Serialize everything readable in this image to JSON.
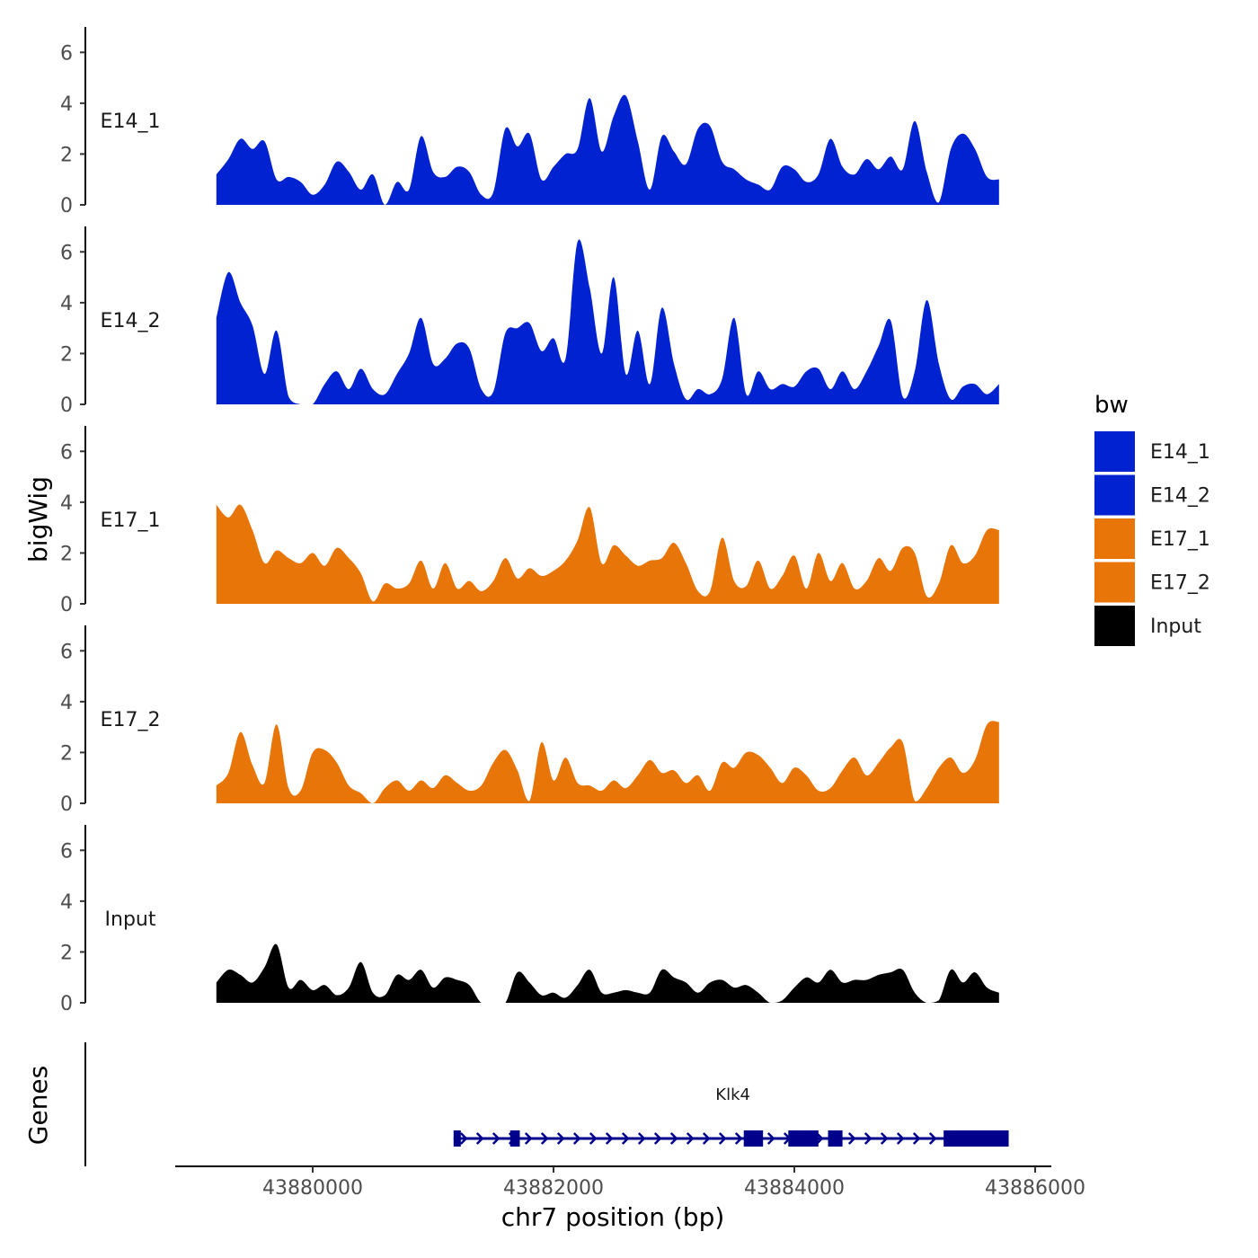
{
  "chart_data": {
    "type": "area",
    "title": "",
    "xlabel": "chr7 position (bp)",
    "ylabel": "bigWig",
    "gene_panel_label": "Genes",
    "x_range": [
      43879000,
      43886200
    ],
    "x_ticks": [
      43880000,
      43882000,
      43884000,
      43886000
    ],
    "x_tick_labels": [
      "43880000",
      "43882000",
      "43884000",
      "43886000"
    ],
    "y_range": [
      0,
      7
    ],
    "y_ticks": [
      0,
      2,
      4,
      6
    ],
    "y_tick_labels": [
      "0",
      "2",
      "4",
      "6"
    ],
    "legend": {
      "title": "bw",
      "position": "right",
      "entries": [
        {
          "label": "E14_1",
          "color": "#0022D1"
        },
        {
          "label": "E14_2",
          "color": "#0022D1"
        },
        {
          "label": "E17_1",
          "color": "#E87507"
        },
        {
          "label": "E17_2",
          "color": "#E87507"
        },
        {
          "label": "Input",
          "color": "#000000"
        }
      ]
    },
    "series": [
      {
        "name": "E14_1",
        "color": "#0022D1",
        "x": [
          43879200,
          43879300,
          43879400,
          43879500,
          43879600,
          43879700,
          43879800,
          43879900,
          43880000,
          43880100,
          43880200,
          43880300,
          43880400,
          43880500,
          43880600,
          43880700,
          43880800,
          43880900,
          43881000,
          43881100,
          43881200,
          43881300,
          43881400,
          43881500,
          43881600,
          43881700,
          43881800,
          43881900,
          43882000,
          43882100,
          43882200,
          43882300,
          43882400,
          43882500,
          43882600,
          43882700,
          43882800,
          43882900,
          43883000,
          43883100,
          43883200,
          43883300,
          43883400,
          43883500,
          43883600,
          43883700,
          43883800,
          43883900,
          43884000,
          43884100,
          43884200,
          43884300,
          43884400,
          43884500,
          43884600,
          43884700,
          43884800,
          43884900,
          43885000,
          43885100,
          43885200,
          43885300,
          43885400,
          43885500,
          43885600,
          43885700
        ],
        "values": [
          1.2,
          1.8,
          2.6,
          2.2,
          2.5,
          1.0,
          1.1,
          0.9,
          0.4,
          0.8,
          1.7,
          1.3,
          0.6,
          1.2,
          0.0,
          0.9,
          0.6,
          2.7,
          1.3,
          1.1,
          1.5,
          1.3,
          0.4,
          0.5,
          3.0,
          2.3,
          2.8,
          1.0,
          1.5,
          2.0,
          2.2,
          4.2,
          2.1,
          3.5,
          4.3,
          2.5,
          0.6,
          2.7,
          2.1,
          1.6,
          3.0,
          3.1,
          1.7,
          1.4,
          1.0,
          0.8,
          0.6,
          1.5,
          1.4,
          0.9,
          1.2,
          2.6,
          1.5,
          1.2,
          1.8,
          1.4,
          1.9,
          1.4,
          3.3,
          1.3,
          0.1,
          2.2,
          2.8,
          2.2,
          1.1,
          1.0
        ],
        "track_label": "E14_1"
      },
      {
        "name": "E14_2",
        "color": "#0022D1",
        "x": [
          43879200,
          43879300,
          43879400,
          43879500,
          43879600,
          43879700,
          43879800,
          43879900,
          43880000,
          43880100,
          43880200,
          43880300,
          43880400,
          43880500,
          43880600,
          43880700,
          43880800,
          43880900,
          43881000,
          43881100,
          43881200,
          43881300,
          43881400,
          43881500,
          43881600,
          43881700,
          43881800,
          43881900,
          43882000,
          43882100,
          43882200,
          43882300,
          43882400,
          43882500,
          43882600,
          43882700,
          43882800,
          43882900,
          43883000,
          43883100,
          43883200,
          43883300,
          43883400,
          43883500,
          43883600,
          43883700,
          43883800,
          43883900,
          43884000,
          43884100,
          43884200,
          43884300,
          43884400,
          43884500,
          43884600,
          43884700,
          43884800,
          43884900,
          43885000,
          43885100,
          43885200,
          43885300,
          43885400,
          43885500,
          43885600,
          43885700
        ],
        "values": [
          3.4,
          5.2,
          4.0,
          3.1,
          1.2,
          2.9,
          0.3,
          0.0,
          0.0,
          0.8,
          1.3,
          0.6,
          1.4,
          0.6,
          0.4,
          1.2,
          2.0,
          3.4,
          1.6,
          1.8,
          2.4,
          2.2,
          0.6,
          0.5,
          2.8,
          3.0,
          3.2,
          2.1,
          2.6,
          1.8,
          6.4,
          4.6,
          2.0,
          5.0,
          1.2,
          2.9,
          0.8,
          3.8,
          1.6,
          0.2,
          0.6,
          0.4,
          1.0,
          3.4,
          0.4,
          1.3,
          0.6,
          0.8,
          0.7,
          1.3,
          1.4,
          0.6,
          1.3,
          0.6,
          1.3,
          2.3,
          3.3,
          0.3,
          1.3,
          4.1,
          1.6,
          0.2,
          0.7,
          0.8,
          0.4,
          0.8
        ],
        "track_label": "E14_2"
      },
      {
        "name": "E17_1",
        "color": "#E87507",
        "x": [
          43879200,
          43879300,
          43879400,
          43879500,
          43879600,
          43879700,
          43879800,
          43879900,
          43880000,
          43880100,
          43880200,
          43880300,
          43880400,
          43880500,
          43880600,
          43880700,
          43880800,
          43880900,
          43881000,
          43881100,
          43881200,
          43881300,
          43881400,
          43881500,
          43881600,
          43881700,
          43881800,
          43881900,
          43882000,
          43882100,
          43882200,
          43882300,
          43882400,
          43882500,
          43882600,
          43882700,
          43882800,
          43882900,
          43883000,
          43883100,
          43883200,
          43883300,
          43883400,
          43883500,
          43883600,
          43883700,
          43883800,
          43883900,
          43884000,
          43884100,
          43884200,
          43884300,
          43884400,
          43884500,
          43884600,
          43884700,
          43884800,
          43884900,
          43885000,
          43885100,
          43885200,
          43885300,
          43885400,
          43885500,
          43885600,
          43885700
        ],
        "values": [
          3.9,
          3.4,
          3.9,
          2.9,
          1.6,
          2.1,
          1.8,
          1.6,
          2.0,
          1.5,
          2.2,
          1.8,
          1.2,
          0.1,
          0.8,
          0.6,
          0.8,
          1.7,
          0.6,
          1.6,
          0.6,
          0.9,
          0.5,
          0.9,
          1.8,
          1.0,
          1.4,
          1.1,
          1.3,
          1.7,
          2.5,
          3.8,
          1.6,
          2.3,
          1.9,
          1.5,
          1.7,
          1.8,
          2.4,
          1.6,
          0.5,
          0.5,
          2.6,
          0.9,
          0.7,
          1.7,
          0.6,
          1.1,
          1.9,
          0.6,
          2.0,
          0.9,
          1.6,
          0.6,
          0.9,
          1.8,
          1.3,
          2.2,
          2.0,
          0.3,
          0.8,
          2.3,
          1.6,
          1.9,
          2.9,
          2.9
        ],
        "track_label": "E17_1"
      },
      {
        "name": "E17_2",
        "color": "#E87507",
        "x": [
          43879200,
          43879300,
          43879400,
          43879500,
          43879600,
          43879700,
          43879800,
          43879900,
          43880000,
          43880100,
          43880200,
          43880300,
          43880400,
          43880500,
          43880600,
          43880700,
          43880800,
          43880900,
          43881000,
          43881100,
          43881200,
          43881300,
          43881400,
          43881500,
          43881600,
          43881700,
          43881800,
          43881900,
          43882000,
          43882100,
          43882200,
          43882300,
          43882400,
          43882500,
          43882600,
          43882700,
          43882800,
          43882900,
          43883000,
          43883100,
          43883200,
          43883300,
          43883400,
          43883500,
          43883600,
          43883700,
          43883800,
          43883900,
          43884000,
          43884100,
          43884200,
          43884300,
          43884400,
          43884500,
          43884600,
          43884700,
          43884800,
          43884900,
          43885000,
          43885100,
          43885200,
          43885300,
          43885400,
          43885500,
          43885600,
          43885700
        ],
        "values": [
          0.7,
          1.2,
          2.8,
          1.5,
          0.8,
          3.1,
          0.6,
          0.5,
          2.0,
          2.1,
          1.6,
          0.7,
          0.4,
          0.0,
          0.6,
          0.9,
          0.5,
          0.9,
          0.6,
          1.1,
          0.8,
          0.5,
          0.7,
          1.6,
          2.1,
          1.3,
          0.1,
          2.4,
          0.9,
          1.8,
          0.8,
          0.7,
          0.5,
          0.9,
          0.6,
          1.1,
          1.7,
          1.2,
          1.3,
          0.8,
          1.1,
          0.5,
          1.6,
          1.4,
          2.0,
          1.9,
          1.4,
          0.8,
          1.4,
          1.1,
          0.5,
          0.6,
          1.3,
          1.8,
          1.1,
          1.6,
          2.2,
          2.4,
          0.1,
          0.6,
          1.4,
          1.8,
          1.2,
          1.7,
          3.1,
          3.2
        ],
        "track_label": "E17_2"
      },
      {
        "name": "Input",
        "color": "#000000",
        "x": [
          43879200,
          43879300,
          43879400,
          43879500,
          43879600,
          43879700,
          43879800,
          43879900,
          43880000,
          43880100,
          43880200,
          43880300,
          43880400,
          43880500,
          43880600,
          43880700,
          43880800,
          43880900,
          43881000,
          43881100,
          43881200,
          43881300,
          43881400,
          43881500,
          43881600,
          43881700,
          43881800,
          43881900,
          43882000,
          43882100,
          43882200,
          43882300,
          43882400,
          43882500,
          43882600,
          43882700,
          43882800,
          43882900,
          43883000,
          43883100,
          43883200,
          43883300,
          43883400,
          43883500,
          43883600,
          43883700,
          43883800,
          43883900,
          43884000,
          43884100,
          43884200,
          43884300,
          43884400,
          43884500,
          43884600,
          43884700,
          43884800,
          43884900,
          43885000,
          43885100,
          43885200,
          43885300,
          43885400,
          43885500,
          43885600,
          43885700
        ],
        "values": [
          0.8,
          1.3,
          1.1,
          0.8,
          1.4,
          2.3,
          0.6,
          0.9,
          0.5,
          0.7,
          0.3,
          0.6,
          1.6,
          0.4,
          0.3,
          1.1,
          0.9,
          1.3,
          0.6,
          1.0,
          0.9,
          0.7,
          0.0,
          0.0,
          0.0,
          1.2,
          0.8,
          0.3,
          0.4,
          0.2,
          0.7,
          1.3,
          0.4,
          0.4,
          0.5,
          0.4,
          0.4,
          1.3,
          1.0,
          0.8,
          0.4,
          0.8,
          0.9,
          0.6,
          0.7,
          0.4,
          0.0,
          0.1,
          0.6,
          1.0,
          0.8,
          1.3,
          0.8,
          0.9,
          0.9,
          1.1,
          1.2,
          1.3,
          0.4,
          0.0,
          0.1,
          1.3,
          0.8,
          1.2,
          0.6,
          0.4
        ],
        "track_label": "Input"
      }
    ],
    "genes": [
      {
        "name": "Klk4",
        "start": 43881170,
        "end": 43885780,
        "strand": "+",
        "color": "#00008B",
        "exons": [
          [
            43881170,
            43881230
          ],
          [
            43881640,
            43881720
          ],
          [
            43883580,
            43883740
          ],
          [
            43883950,
            43884200
          ],
          [
            43884280,
            43884400
          ],
          [
            43885240,
            43885780
          ]
        ]
      }
    ]
  }
}
